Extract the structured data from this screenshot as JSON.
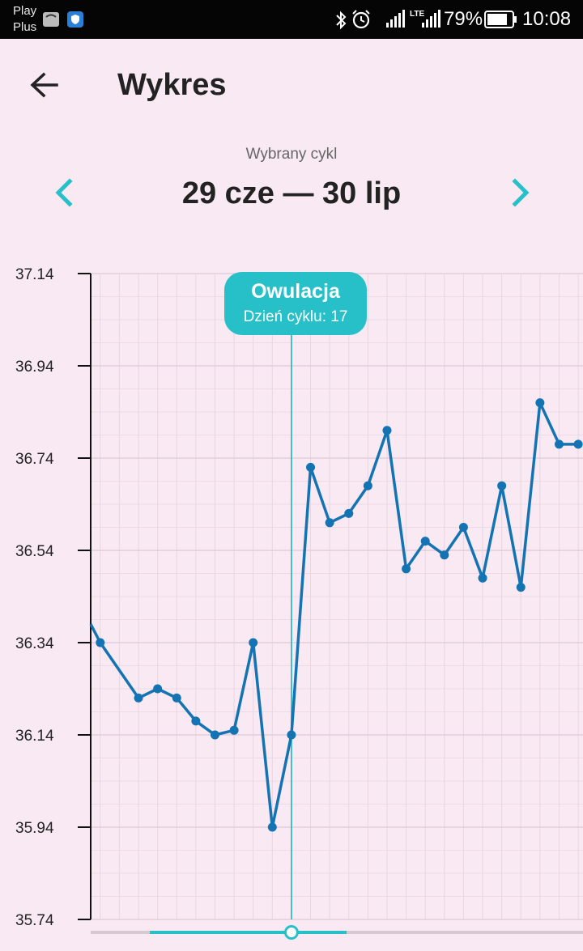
{
  "status_bar": {
    "carrier_line1": "Play",
    "carrier_line2": "Plus",
    "network": "LTE",
    "battery_pct": "79%",
    "time": "10:08",
    "icons": [
      "huawei-icon",
      "shield-icon",
      "bluetooth-icon",
      "alarm-icon",
      "signal-icon",
      "signal-lte-icon",
      "battery-icon"
    ]
  },
  "header": {
    "back_icon": "back-arrow-icon",
    "title": "Wykres"
  },
  "cycle_selector": {
    "caption": "Wybrany cykl",
    "range": "29 cze — 30 lip",
    "prev_icon": "chevron-left-icon",
    "next_icon": "chevron-right-icon"
  },
  "tooltip": {
    "title": "Owulacja",
    "subtitle": "Dzień cyklu: 17"
  },
  "colors": {
    "background": "#f8e9f2",
    "line": "#1473b2",
    "accent": "#27c0c8",
    "axis": "#111111",
    "grid": "#e8d6e2"
  },
  "chart_data": {
    "type": "line",
    "title": "",
    "xlabel": "",
    "ylabel": "",
    "y_ticks": [
      "37.14",
      "36.94",
      "36.74",
      "36.54",
      "36.34",
      "36.14",
      "35.94",
      "35.74"
    ],
    "ylim": [
      35.74,
      37.14
    ],
    "xlim": [
      0.5,
      26.25
    ],
    "grid": true,
    "ovulation_day": 11,
    "series": [
      {
        "x": [
          0.5,
          1,
          3,
          4,
          5,
          6,
          7,
          8,
          9,
          10,
          11,
          12,
          13,
          14,
          15,
          16,
          17,
          18,
          19,
          20,
          21,
          22,
          23,
          24,
          25,
          26
        ],
        "values": [
          36.38,
          36.34,
          36.22,
          36.24,
          36.22,
          36.17,
          36.14,
          36.15,
          36.34,
          35.94,
          36.14,
          36.72,
          36.6,
          36.62,
          36.68,
          36.8,
          36.5,
          36.56,
          36.53,
          36.59,
          36.48,
          36.68,
          36.46,
          36.86,
          36.77,
          36.77
        ]
      }
    ],
    "markers_from_index": 1
  },
  "slider": {
    "position_fraction": 0.42,
    "range_fraction": [
      0.12,
      0.52
    ]
  }
}
